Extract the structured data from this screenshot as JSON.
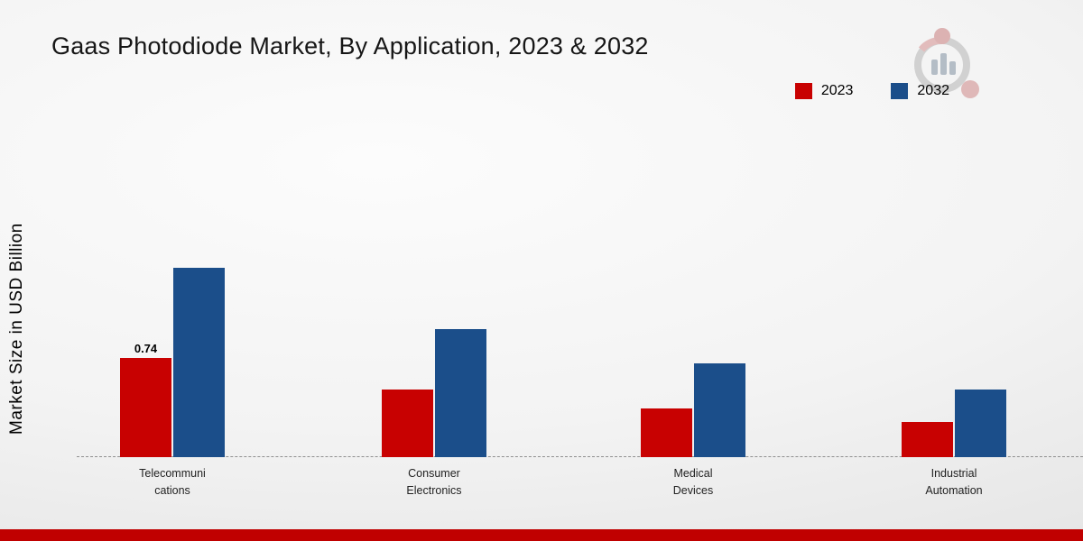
{
  "chart_data": {
    "type": "bar",
    "title": "Gaas Photodiode Market, By Application, 2023 & 2032",
    "xlabel": "",
    "ylabel": "Market Size in USD Billion",
    "unit": "USD Billion",
    "categories": [
      "Telecommuni cations",
      "Consumer Electronics",
      "Medical Devices",
      "Industrial Automation"
    ],
    "series": [
      {
        "name": "2023",
        "color": "#c80101",
        "values": [
          0.74,
          0.5,
          0.36,
          0.26
        ]
      },
      {
        "name": "2032",
        "color": "#1b4e8a",
        "values": [
          1.41,
          0.95,
          0.7,
          0.5
        ]
      }
    ],
    "point_labels": [
      {
        "series_index": 0,
        "category_index": 0,
        "text": "0.74"
      }
    ],
    "ylim": [
      0,
      1.6
    ],
    "grid": false,
    "baseline_style": "dashed",
    "legend_position": "top-right"
  },
  "branding": {
    "footer_stripe_color": "#c00000",
    "logo_name": "market-research-logo"
  }
}
